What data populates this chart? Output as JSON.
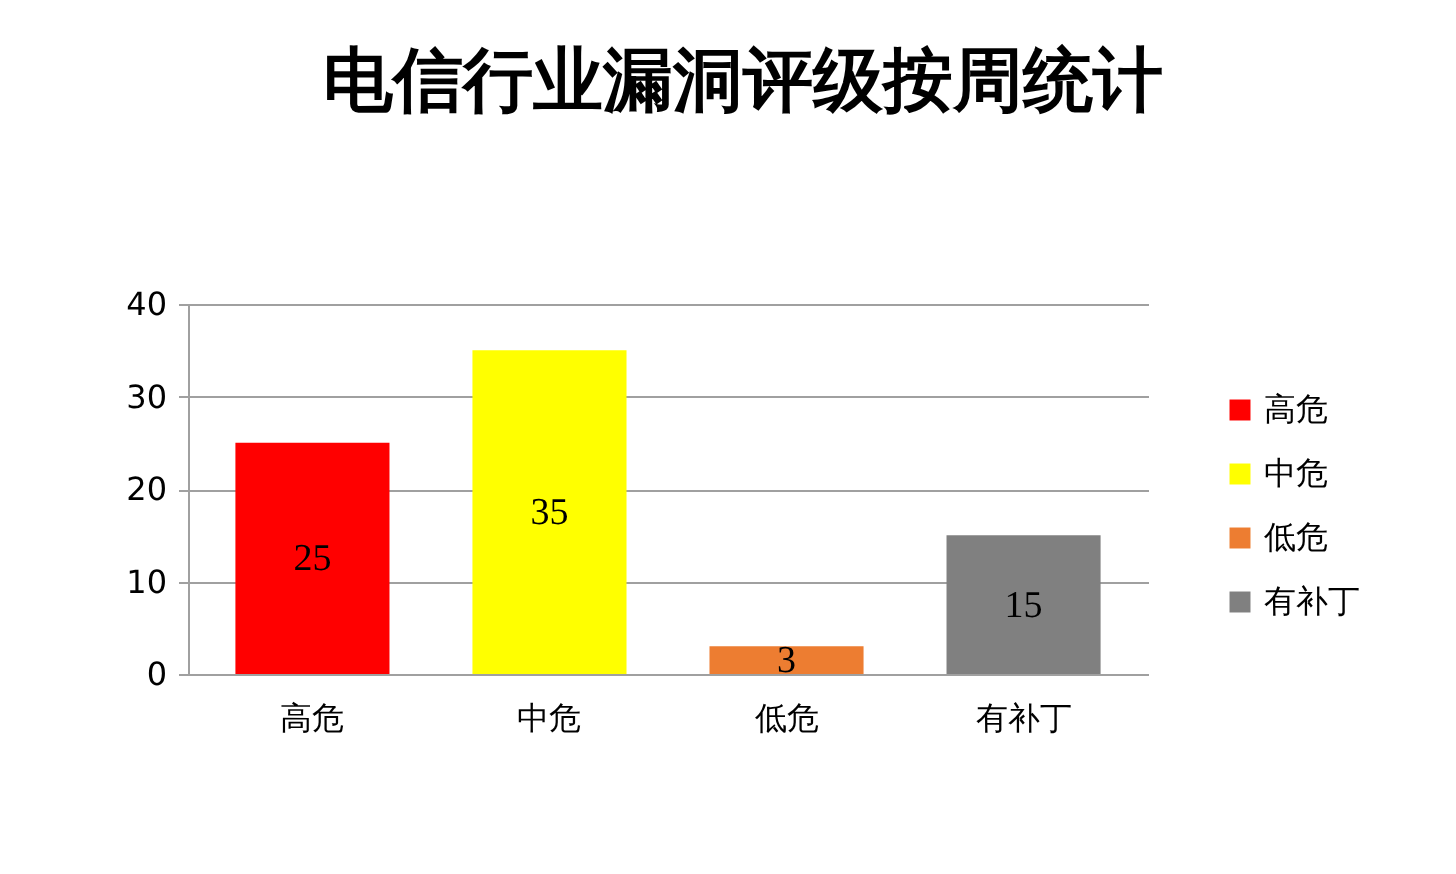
{
  "chart_data": {
    "type": "bar",
    "title": "电信行业漏洞评级按周统计",
    "categories": [
      "高危",
      "中危",
      "低危",
      "有补丁"
    ],
    "series": [
      {
        "name": "高危",
        "color": "#ff0000",
        "values": [
          25,
          null,
          null,
          null
        ]
      },
      {
        "name": "中危",
        "color": "#ffff00",
        "values": [
          null,
          35,
          null,
          null
        ]
      },
      {
        "name": "低危",
        "color": "#ed7d31",
        "values": [
          null,
          null,
          3,
          null
        ]
      },
      {
        "name": "有补丁",
        "color": "#808080",
        "values": [
          null,
          null,
          null,
          15
        ]
      }
    ],
    "stacked": true,
    "ylim": [
      0,
      40
    ],
    "yticks": [
      0,
      10,
      20,
      30,
      40
    ],
    "grid": "y",
    "legend": "right",
    "data_labels": true
  }
}
